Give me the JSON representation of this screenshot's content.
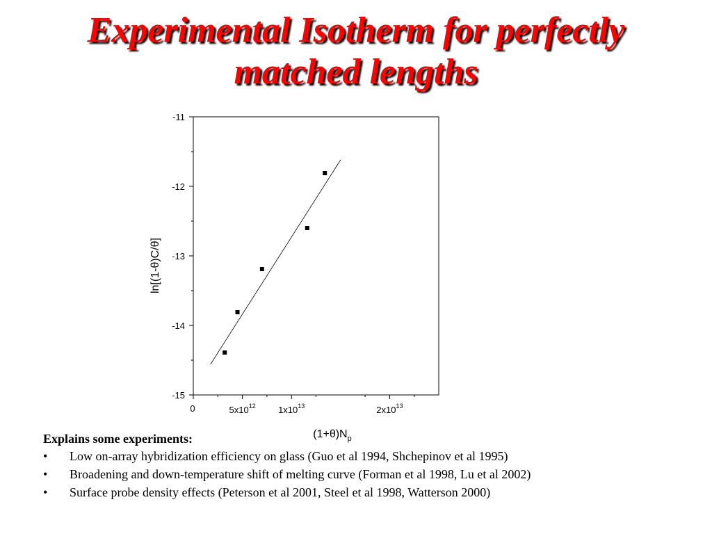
{
  "slide": {
    "title_line1": "Experimental Isotherm for perfectly",
    "title_line2": "matched lengths",
    "title_color": "#ff0000"
  },
  "chart_data": {
    "type": "scatter",
    "title": "",
    "xlabel": "(1+θ)N",
    "xlabel_subscript": "p",
    "ylabel": "ln[(1-θ)C/θ]",
    "xlim": [
      0,
      25000000000000.0
    ],
    "ylim": [
      -15,
      -11
    ],
    "x_ticks": [
      {
        "value": 0,
        "base": "0",
        "exp": ""
      },
      {
        "value": 5000000000000.0,
        "base": "5x10",
        "exp": "12"
      },
      {
        "value": 10000000000000.0,
        "base": "1x10",
        "exp": "13"
      },
      {
        "value": 20000000000000.0,
        "base": "2x10",
        "exp": "13"
      }
    ],
    "y_ticks": [
      -11,
      -12,
      -13,
      -14,
      -15
    ],
    "points": [
      {
        "x": 3200000000000.0,
        "y": -14.39
      },
      {
        "x": 4500000000000.0,
        "y": -13.81
      },
      {
        "x": 7000000000000.0,
        "y": -13.19
      },
      {
        "x": 11600000000000.0,
        "y": -12.6
      },
      {
        "x": 13400000000000.0,
        "y": -11.81
      }
    ],
    "fit_line": [
      {
        "x": 1750000000000.0,
        "y": -14.56
      },
      {
        "x": 15000000000000.0,
        "y": -11.62
      }
    ],
    "grid": false,
    "legend": "none"
  },
  "notes": {
    "heading": "Explains some experiments:",
    "bullet_symbol": "•",
    "items": [
      "Low on-array hybridization efficiency on glass (Guo et al 1994, Shchepinov et al 1995)",
      "Broadening and down-temperature shift of melting curve (Forman et al 1998, Lu et al 2002)",
      "Surface probe density effects (Peterson et al 2001, Steel et al 1998, Watterson 2000)"
    ]
  }
}
